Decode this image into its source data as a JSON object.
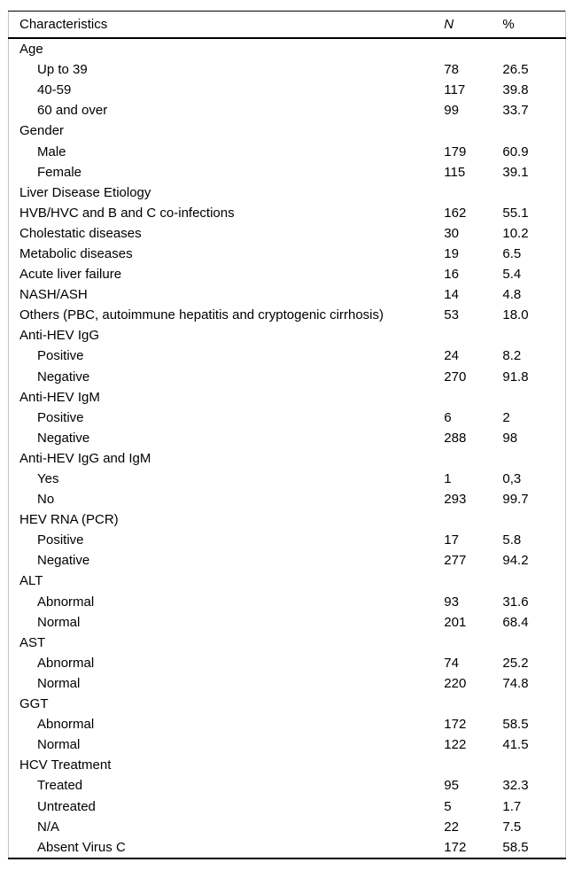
{
  "table": {
    "header": {
      "characteristics": "Characteristics",
      "n": "N",
      "pct": "%"
    },
    "rows": [
      {
        "label": "Age",
        "n": "",
        "pct": "",
        "indent": false,
        "group": true
      },
      {
        "label": "Up to 39",
        "n": "78",
        "pct": "26.5",
        "indent": true,
        "group": false
      },
      {
        "label": "40-59",
        "n": "117",
        "pct": "39.8",
        "indent": true,
        "group": false
      },
      {
        "label": "60 and over",
        "n": "99",
        "pct": "33.7",
        "indent": true,
        "group": false
      },
      {
        "label": "Gender",
        "n": "",
        "pct": "",
        "indent": false,
        "group": true
      },
      {
        "label": "Male",
        "n": "179",
        "pct": "60.9",
        "indent": true,
        "group": false
      },
      {
        "label": "Female",
        "n": "115",
        "pct": "39.1",
        "indent": true,
        "group": false
      },
      {
        "label": "Liver Disease Etiology",
        "n": "",
        "pct": "",
        "indent": false,
        "group": true
      },
      {
        "label": "HVB/HVC and B and C co-infections",
        "n": "162",
        "pct": "55.1",
        "indent": false,
        "group": false
      },
      {
        "label": "Cholestatic diseases",
        "n": "30",
        "pct": "10.2",
        "indent": false,
        "group": false
      },
      {
        "label": "Metabolic diseases",
        "n": "19",
        "pct": "6.5",
        "indent": false,
        "group": false
      },
      {
        "label": "Acute liver failure",
        "n": "16",
        "pct": "5.4",
        "indent": false,
        "group": false
      },
      {
        "label": "NASH/ASH",
        "n": "14",
        "pct": "4.8",
        "indent": false,
        "group": false
      },
      {
        "label": "Others (PBC, autoimmune hepatitis and cryptogenic cirrhosis)",
        "n": "53",
        "pct": "18.0",
        "indent": false,
        "group": false
      },
      {
        "label": "Anti-HEV IgG",
        "n": "",
        "pct": "",
        "indent": false,
        "group": true
      },
      {
        "label": "Positive",
        "n": "24",
        "pct": "8.2",
        "indent": true,
        "group": false
      },
      {
        "label": "Negative",
        "n": "270",
        "pct": "91.8",
        "indent": true,
        "group": false
      },
      {
        "label": "Anti-HEV IgM",
        "n": "",
        "pct": "",
        "indent": false,
        "group": true
      },
      {
        "label": "Positive",
        "n": "6",
        "pct": "2",
        "indent": true,
        "group": false
      },
      {
        "label": "Negative",
        "n": "288",
        "pct": "98",
        "indent": true,
        "group": false
      },
      {
        "label": "Anti-HEV IgG and IgM",
        "n": "",
        "pct": "",
        "indent": false,
        "group": true
      },
      {
        "label": "Yes",
        "n": "1",
        "pct": "0,3",
        "indent": true,
        "group": false
      },
      {
        "label": "No",
        "n": "293",
        "pct": "99.7",
        "indent": true,
        "group": false
      },
      {
        "label": "HEV RNA (PCR)",
        "n": "",
        "pct": "",
        "indent": false,
        "group": true
      },
      {
        "label": "Positive",
        "n": "17",
        "pct": "5.8",
        "indent": true,
        "group": false
      },
      {
        "label": "Negative",
        "n": "277",
        "pct": "94.2",
        "indent": true,
        "group": false
      },
      {
        "label": "ALT",
        "n": "",
        "pct": "",
        "indent": false,
        "group": true
      },
      {
        "label": "Abnormal",
        "n": "93",
        "pct": "31.6",
        "indent": true,
        "group": false
      },
      {
        "label": "Normal",
        "n": "201",
        "pct": "68.4",
        "indent": true,
        "group": false
      },
      {
        "label": "AST",
        "n": "",
        "pct": "",
        "indent": false,
        "group": true
      },
      {
        "label": "Abnormal",
        "n": "74",
        "pct": "25.2",
        "indent": true,
        "group": false
      },
      {
        "label": "Normal",
        "n": "220",
        "pct": "74.8",
        "indent": true,
        "group": false
      },
      {
        "label": "GGT",
        "n": "",
        "pct": "",
        "indent": false,
        "group": true
      },
      {
        "label": "Abnormal",
        "n": "172",
        "pct": "58.5",
        "indent": true,
        "group": false
      },
      {
        "label": "Normal",
        "n": "122",
        "pct": "41.5",
        "indent": true,
        "group": false
      },
      {
        "label": "HCV Treatment",
        "n": "",
        "pct": "",
        "indent": false,
        "group": true
      },
      {
        "label": "Treated",
        "n": "95",
        "pct": "32.3",
        "indent": true,
        "group": false
      },
      {
        "label": "Untreated",
        "n": "5",
        "pct": "1.7",
        "indent": true,
        "group": false
      },
      {
        "label": "N/A",
        "n": "22",
        "pct": "7.5",
        "indent": true,
        "group": false
      },
      {
        "label": "Absent Virus C",
        "n": "172",
        "pct": "58.5",
        "indent": true,
        "group": false
      }
    ],
    "colors": {
      "text": "#000000",
      "rule": "#000000",
      "frame": "#c6c6c6",
      "background": "#ffffff"
    }
  }
}
